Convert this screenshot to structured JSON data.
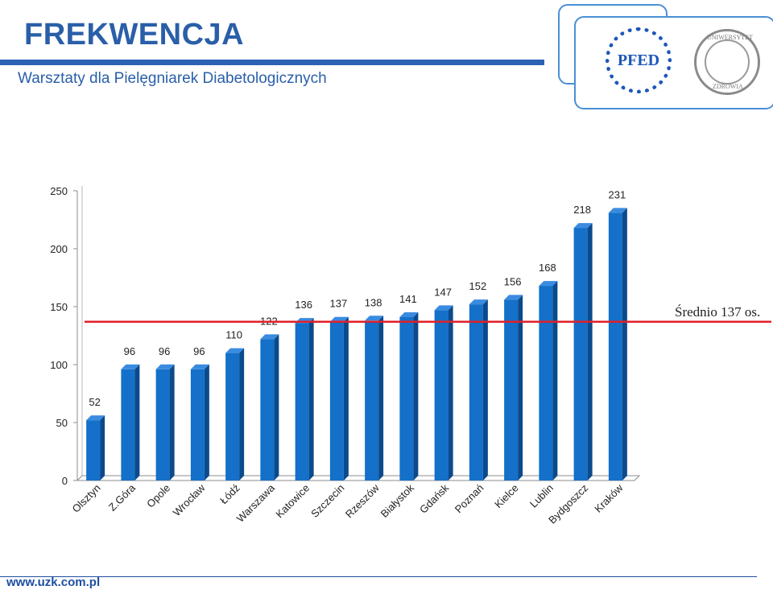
{
  "header": {
    "title": "FREKWENCJA",
    "subtitle": "Warsztaty dla  Pielęgniarek Diabetologicznych"
  },
  "logos": {
    "pfed_text": "PFED",
    "uzk_top_text": "UNIWERSYTET",
    "uzk_bottom_text": "ZDROWIA"
  },
  "average_label": "Średnio  137  os.",
  "footer": {
    "url": "www.uzk.com.pl"
  },
  "colors": {
    "bar": "#1470c8",
    "bar_dark": "#0b4a8c",
    "bar_top": "#3a8be0",
    "average_line": "#e0202a",
    "title": "#2a5fa8"
  },
  "chart_data": {
    "type": "bar",
    "categories": [
      "Olsztyn",
      "Z.Góra",
      "Opole",
      "Wrocław",
      "Łódź",
      "Warszawa",
      "Katowice",
      "Szczecin",
      "Rzeszów",
      "Białystok",
      "Gdańsk",
      "Poznań",
      "Kielce",
      "Lublin",
      "Bydgoszcz",
      "Kraków"
    ],
    "values": [
      52,
      96,
      96,
      96,
      110,
      122,
      136,
      137,
      138,
      141,
      147,
      152,
      156,
      168,
      218,
      231
    ],
    "ylim": [
      0,
      250
    ],
    "yticks": [
      0,
      50,
      100,
      150,
      200,
      250
    ],
    "average": 137,
    "grid": false,
    "legend": "none"
  }
}
